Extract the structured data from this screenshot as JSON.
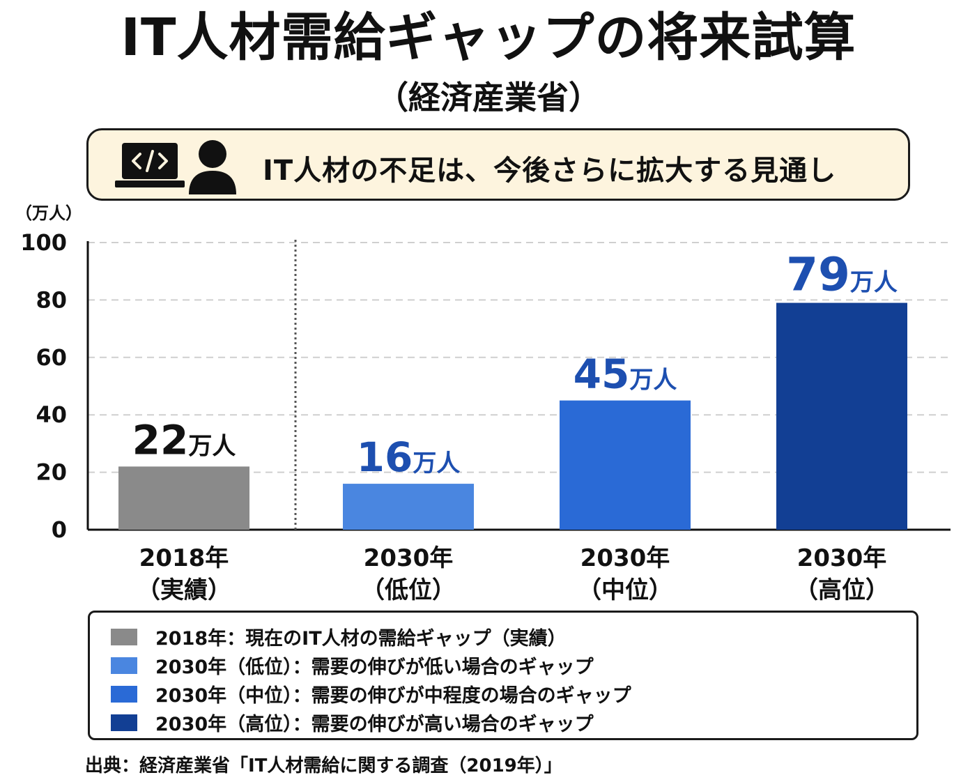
{
  "header": {
    "title": "IT人材需給ギャップの将来試算",
    "subtitle": "（経済産業省）"
  },
  "banner": {
    "text": "IT人材の不足は、今後さらに拡大する見通し",
    "icon_laptop": "laptop-code-icon",
    "icon_person": "person-icon"
  },
  "chart_data": {
    "type": "bar",
    "unit_label": "（万人）",
    "categories": [
      [
        "2018年",
        "（実績）"
      ],
      [
        "2030年",
        "（低位）"
      ],
      [
        "2030年",
        "（中位）"
      ],
      [
        "2030年",
        "（高位）"
      ]
    ],
    "values": [
      22,
      16,
      45,
      79
    ],
    "data_labels": [
      {
        "num": "22",
        "unit": "万人"
      },
      {
        "num": "16",
        "unit": "万人"
      },
      {
        "num": "45",
        "unit": "万人"
      },
      {
        "num": "79",
        "unit": "万人"
      }
    ],
    "colors": [
      "#8a8a8a",
      "#4a86e0",
      "#2a6ad6",
      "#123f94"
    ],
    "label_colors": [
      "#111111",
      "#1d4fb0",
      "#1d4fb0",
      "#1d4fb0"
    ],
    "ylim": [
      0,
      100
    ],
    "yticks": [
      0,
      20,
      40,
      60,
      80,
      100
    ],
    "grid": true,
    "separator_after_index": 0
  },
  "legend": {
    "items": [
      {
        "color": "#8a8a8a",
        "text": "2018年：現在のIT人材の需給ギャップ（実績）"
      },
      {
        "color": "#4a86e0",
        "text": "2030年（低位）：需要の伸びが低い場合のギャップ"
      },
      {
        "color": "#2a6ad6",
        "text": "2030年（中位）：需要の伸びが中程度の場合のギャップ"
      },
      {
        "color": "#123f94",
        "text": "2030年（高位）：需要の伸びが高い場合のギャップ"
      }
    ]
  },
  "source": "出典：経済産業省「IT人材需給に関する調査（2019年）」"
}
